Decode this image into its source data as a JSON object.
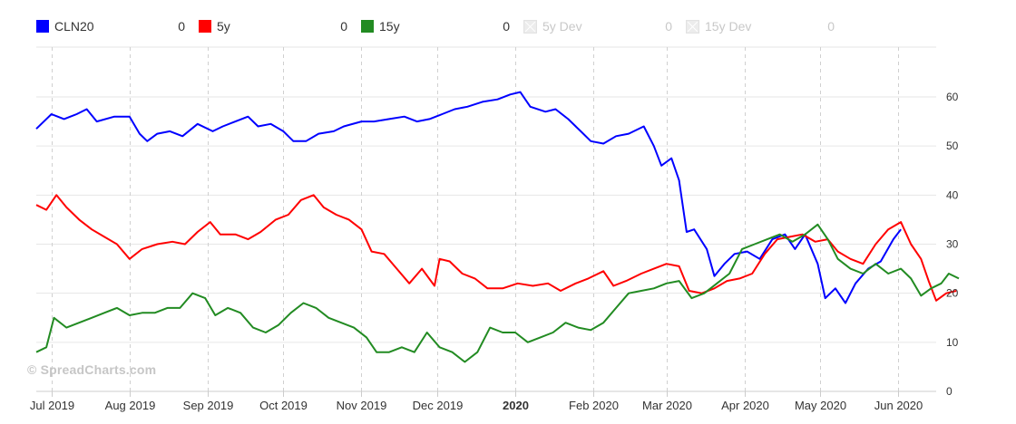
{
  "legend": [
    {
      "name": "CLN20",
      "value": "0",
      "color": "#0000ff",
      "visible": true
    },
    {
      "name": "5y",
      "value": "0",
      "color": "#ff0000",
      "visible": true
    },
    {
      "name": "15y",
      "value": "0",
      "color": "#228b22",
      "visible": true
    },
    {
      "name": "5y Dev",
      "value": "0",
      "color": "#cccccc",
      "visible": false
    },
    {
      "name": "15y Dev",
      "value": "0",
      "color": "#cccccc",
      "visible": false
    }
  ],
  "watermark": "© SpreadCharts.com",
  "chart_data": {
    "type": "line",
    "xlabel": "",
    "ylabel": "",
    "ylim": [
      0,
      60
    ],
    "y_ticks": [
      "0",
      "10",
      "20",
      "30",
      "40",
      "50",
      "60"
    ],
    "x_ticks": [
      "Jul 2019",
      "Aug 2019",
      "Sep 2019",
      "Oct 2019",
      "Nov 2019",
      "Dec 2019",
      "2020",
      "Feb 2020",
      "Mar 2020",
      "Apr 2020",
      "May 2020",
      "Jun 2020"
    ],
    "x_range": [
      "2019-06-25",
      "2020-06-16"
    ],
    "grid": "horizontal solid, vertical dashed",
    "series": [
      {
        "name": "CLN20",
        "color": "#0000ff",
        "points": [
          [
            "2019-06-25",
            53.5
          ],
          [
            "2019-07-01",
            56.5
          ],
          [
            "2019-07-06",
            55.5
          ],
          [
            "2019-07-11",
            56.5
          ],
          [
            "2019-07-15",
            57.5
          ],
          [
            "2019-07-19",
            55
          ],
          [
            "2019-07-26",
            56
          ],
          [
            "2019-08-01",
            56
          ],
          [
            "2019-08-05",
            52.5
          ],
          [
            "2019-08-08",
            51
          ],
          [
            "2019-08-12",
            52.5
          ],
          [
            "2019-08-17",
            53
          ],
          [
            "2019-08-22",
            52
          ],
          [
            "2019-08-28",
            54.5
          ],
          [
            "2019-09-03",
            53
          ],
          [
            "2019-09-07",
            54
          ],
          [
            "2019-09-12",
            55
          ],
          [
            "2019-09-17",
            56
          ],
          [
            "2019-09-21",
            54
          ],
          [
            "2019-09-26",
            54.5
          ],
          [
            "2019-10-01",
            53
          ],
          [
            "2019-10-05",
            51
          ],
          [
            "2019-10-10",
            51
          ],
          [
            "2019-10-15",
            52.5
          ],
          [
            "2019-10-21",
            53
          ],
          [
            "2019-10-25",
            54
          ],
          [
            "2019-11-01",
            55
          ],
          [
            "2019-11-06",
            55
          ],
          [
            "2019-11-12",
            55.5
          ],
          [
            "2019-11-18",
            56
          ],
          [
            "2019-11-23",
            55
          ],
          [
            "2019-11-28",
            55.5
          ],
          [
            "2019-12-03",
            56.5
          ],
          [
            "2019-12-08",
            57.5
          ],
          [
            "2019-12-13",
            58
          ],
          [
            "2019-12-19",
            59
          ],
          [
            "2019-12-25",
            59.5
          ],
          [
            "2019-12-30",
            60.5
          ],
          [
            "2020-01-03",
            61
          ],
          [
            "2020-01-07",
            58
          ],
          [
            "2020-01-13",
            57
          ],
          [
            "2020-01-17",
            57.5
          ],
          [
            "2020-01-22",
            55.5
          ],
          [
            "2020-01-27",
            53
          ],
          [
            "2020-01-31",
            51
          ],
          [
            "2020-02-05",
            50.5
          ],
          [
            "2020-02-10",
            52
          ],
          [
            "2020-02-15",
            52.5
          ],
          [
            "2020-02-21",
            54
          ],
          [
            "2020-02-25",
            50
          ],
          [
            "2020-02-28",
            46
          ],
          [
            "2020-03-03",
            47.5
          ],
          [
            "2020-03-06",
            43
          ],
          [
            "2020-03-09",
            32.5
          ],
          [
            "2020-03-12",
            33
          ],
          [
            "2020-03-17",
            29
          ],
          [
            "2020-03-20",
            23.5
          ],
          [
            "2020-03-24",
            26
          ],
          [
            "2020-03-28",
            28
          ],
          [
            "2020-04-02",
            28.5
          ],
          [
            "2020-04-07",
            27
          ],
          [
            "2020-04-12",
            31
          ],
          [
            "2020-04-17",
            32
          ],
          [
            "2020-04-21",
            29
          ],
          [
            "2020-04-25",
            32
          ],
          [
            "2020-04-30",
            26
          ],
          [
            "2020-05-03",
            19
          ],
          [
            "2020-05-07",
            21
          ],
          [
            "2020-05-11",
            18
          ],
          [
            "2020-05-15",
            22
          ],
          [
            "2020-05-20",
            25
          ],
          [
            "2020-05-25",
            26.5
          ],
          [
            "2020-05-30",
            31
          ],
          [
            "2020-06-02",
            33
          ]
        ]
      },
      {
        "name": "5y",
        "color": "#ff0000",
        "points": [
          [
            "2019-06-25",
            38
          ],
          [
            "2019-06-29",
            37
          ],
          [
            "2019-07-03",
            40
          ],
          [
            "2019-07-07",
            37.5
          ],
          [
            "2019-07-12",
            35
          ],
          [
            "2019-07-17",
            33
          ],
          [
            "2019-07-22",
            31.5
          ],
          [
            "2019-07-27",
            30
          ],
          [
            "2019-08-01",
            27
          ],
          [
            "2019-08-06",
            29
          ],
          [
            "2019-08-12",
            30
          ],
          [
            "2019-08-18",
            30.5
          ],
          [
            "2019-08-23",
            30
          ],
          [
            "2019-08-28",
            32.5
          ],
          [
            "2019-09-02",
            34.5
          ],
          [
            "2019-09-06",
            32
          ],
          [
            "2019-09-12",
            32
          ],
          [
            "2019-09-17",
            31
          ],
          [
            "2019-09-22",
            32.5
          ],
          [
            "2019-09-28",
            35
          ],
          [
            "2019-10-03",
            36
          ],
          [
            "2019-10-08",
            39
          ],
          [
            "2019-10-13",
            40
          ],
          [
            "2019-10-17",
            37.5
          ],
          [
            "2019-10-22",
            36
          ],
          [
            "2019-10-27",
            35
          ],
          [
            "2019-11-01",
            33
          ],
          [
            "2019-11-05",
            28.5
          ],
          [
            "2019-11-10",
            28
          ],
          [
            "2019-11-15",
            25
          ],
          [
            "2019-11-20",
            22
          ],
          [
            "2019-11-25",
            25
          ],
          [
            "2019-11-30",
            21.5
          ],
          [
            "2019-12-02",
            27
          ],
          [
            "2019-12-06",
            26.5
          ],
          [
            "2019-12-11",
            24
          ],
          [
            "2019-12-16",
            23
          ],
          [
            "2019-12-21",
            21
          ],
          [
            "2019-12-27",
            21
          ],
          [
            "2020-01-02",
            22
          ],
          [
            "2020-01-08",
            21.5
          ],
          [
            "2020-01-14",
            22
          ],
          [
            "2020-01-19",
            20.5
          ],
          [
            "2020-01-25",
            22
          ],
          [
            "2020-01-30",
            23
          ],
          [
            "2020-02-05",
            24.5
          ],
          [
            "2020-02-09",
            21.5
          ],
          [
            "2020-02-14",
            22.5
          ],
          [
            "2020-02-20",
            24
          ],
          [
            "2020-02-25",
            25
          ],
          [
            "2020-03-01",
            26
          ],
          [
            "2020-03-06",
            25.5
          ],
          [
            "2020-03-10",
            20.5
          ],
          [
            "2020-03-15",
            20
          ],
          [
            "2020-03-20",
            21
          ],
          [
            "2020-03-25",
            22.5
          ],
          [
            "2020-03-30",
            23
          ],
          [
            "2020-04-04",
            24
          ],
          [
            "2020-04-09",
            28
          ],
          [
            "2020-04-14",
            31
          ],
          [
            "2020-04-19",
            31.5
          ],
          [
            "2020-04-24",
            32
          ],
          [
            "2020-04-29",
            30.5
          ],
          [
            "2020-05-04",
            31
          ],
          [
            "2020-05-08",
            28.5
          ],
          [
            "2020-05-13",
            27
          ],
          [
            "2020-05-18",
            26
          ],
          [
            "2020-05-23",
            30
          ],
          [
            "2020-05-28",
            33
          ],
          [
            "2020-06-02",
            34.5
          ],
          [
            "2020-06-06",
            30
          ],
          [
            "2020-06-10",
            27
          ],
          [
            "2020-06-13",
            22.5
          ],
          [
            "2020-06-16",
            18.5
          ],
          [
            "2020-06-20",
            20
          ],
          [
            "2020-06-24",
            20.5
          ]
        ]
      },
      {
        "name": "15y",
        "color": "#228b22",
        "points": [
          [
            "2019-06-25",
            8
          ],
          [
            "2019-06-29",
            9
          ],
          [
            "2019-07-02",
            15
          ],
          [
            "2019-07-07",
            13
          ],
          [
            "2019-07-12",
            14
          ],
          [
            "2019-07-17",
            15
          ],
          [
            "2019-07-22",
            16
          ],
          [
            "2019-07-27",
            17
          ],
          [
            "2019-08-01",
            15.5
          ],
          [
            "2019-08-06",
            16
          ],
          [
            "2019-08-11",
            16
          ],
          [
            "2019-08-16",
            17
          ],
          [
            "2019-08-21",
            17
          ],
          [
            "2019-08-26",
            20
          ],
          [
            "2019-08-31",
            19
          ],
          [
            "2019-09-04",
            15.5
          ],
          [
            "2019-09-09",
            17
          ],
          [
            "2019-09-14",
            16
          ],
          [
            "2019-09-19",
            13
          ],
          [
            "2019-09-24",
            12
          ],
          [
            "2019-09-29",
            13.5
          ],
          [
            "2019-10-04",
            16
          ],
          [
            "2019-10-09",
            18
          ],
          [
            "2019-10-14",
            17
          ],
          [
            "2019-10-19",
            15
          ],
          [
            "2019-10-24",
            14
          ],
          [
            "2019-10-29",
            13
          ],
          [
            "2019-11-03",
            11
          ],
          [
            "2019-11-07",
            8
          ],
          [
            "2019-11-12",
            8
          ],
          [
            "2019-11-17",
            9
          ],
          [
            "2019-11-22",
            8
          ],
          [
            "2019-11-27",
            12
          ],
          [
            "2019-12-02",
            9
          ],
          [
            "2019-12-07",
            8
          ],
          [
            "2019-12-12",
            6
          ],
          [
            "2019-12-17",
            8
          ],
          [
            "2019-12-22",
            13
          ],
          [
            "2019-12-27",
            12
          ],
          [
            "2020-01-01",
            12
          ],
          [
            "2020-01-06",
            10
          ],
          [
            "2020-01-11",
            11
          ],
          [
            "2020-01-16",
            12
          ],
          [
            "2020-01-21",
            14
          ],
          [
            "2020-01-26",
            13
          ],
          [
            "2020-01-31",
            12.5
          ],
          [
            "2020-02-05",
            14
          ],
          [
            "2020-02-10",
            17
          ],
          [
            "2020-02-15",
            20
          ],
          [
            "2020-02-20",
            20.5
          ],
          [
            "2020-02-25",
            21
          ],
          [
            "2020-03-01",
            22
          ],
          [
            "2020-03-06",
            22.5
          ],
          [
            "2020-03-11",
            19
          ],
          [
            "2020-03-16",
            20
          ],
          [
            "2020-03-21",
            22
          ],
          [
            "2020-03-26",
            24
          ],
          [
            "2020-03-31",
            29
          ],
          [
            "2020-04-05",
            30
          ],
          [
            "2020-04-10",
            31
          ],
          [
            "2020-04-15",
            32
          ],
          [
            "2020-04-20",
            30.5
          ],
          [
            "2020-04-25",
            32
          ],
          [
            "2020-04-30",
            34
          ],
          [
            "2020-05-04",
            31
          ],
          [
            "2020-05-08",
            27
          ],
          [
            "2020-05-13",
            25
          ],
          [
            "2020-05-18",
            24
          ],
          [
            "2020-05-23",
            26
          ],
          [
            "2020-05-28",
            24
          ],
          [
            "2020-06-02",
            25
          ],
          [
            "2020-06-06",
            23
          ],
          [
            "2020-06-10",
            19.5
          ],
          [
            "2020-06-14",
            21
          ],
          [
            "2020-06-18",
            22
          ],
          [
            "2020-06-21",
            24
          ],
          [
            "2020-06-25",
            23
          ]
        ]
      }
    ]
  }
}
